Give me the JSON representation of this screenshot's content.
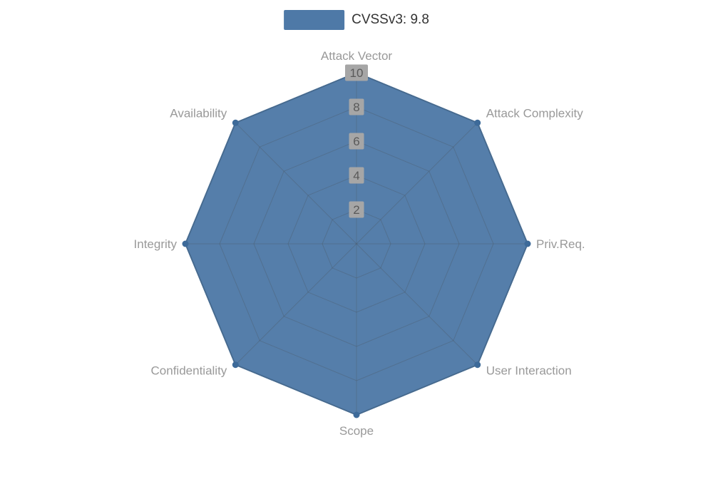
{
  "legend": {
    "label": "CVSSv3: 9.8"
  },
  "colors": {
    "series_fill": "#4e79a7",
    "series_stroke": "#47719c",
    "series_dot": "#3d6a99",
    "grid_line": "#4a5560",
    "axis_label": "#999999",
    "tick_text": "#595959",
    "tick_bg": "#a6a6a6",
    "legend_text": "#333333",
    "background": "#ffffff"
  },
  "chart_data": {
    "type": "radar",
    "title": "CVSSv3: 9.8",
    "axes": [
      "Attack Vector",
      "Attack Complexity",
      "Priv.Req.",
      "User Interaction",
      "Scope",
      "Confidentiality",
      "Integrity",
      "Availability"
    ],
    "series": [
      {
        "name": "CVSSv3: 9.8",
        "values": [
          10,
          10,
          10,
          10,
          10,
          10,
          10,
          10
        ]
      }
    ],
    "max": 10,
    "ticks": [
      2,
      4,
      6,
      8,
      10
    ],
    "rings": 5,
    "grid": "spider-web",
    "legend_position": "top-center"
  }
}
